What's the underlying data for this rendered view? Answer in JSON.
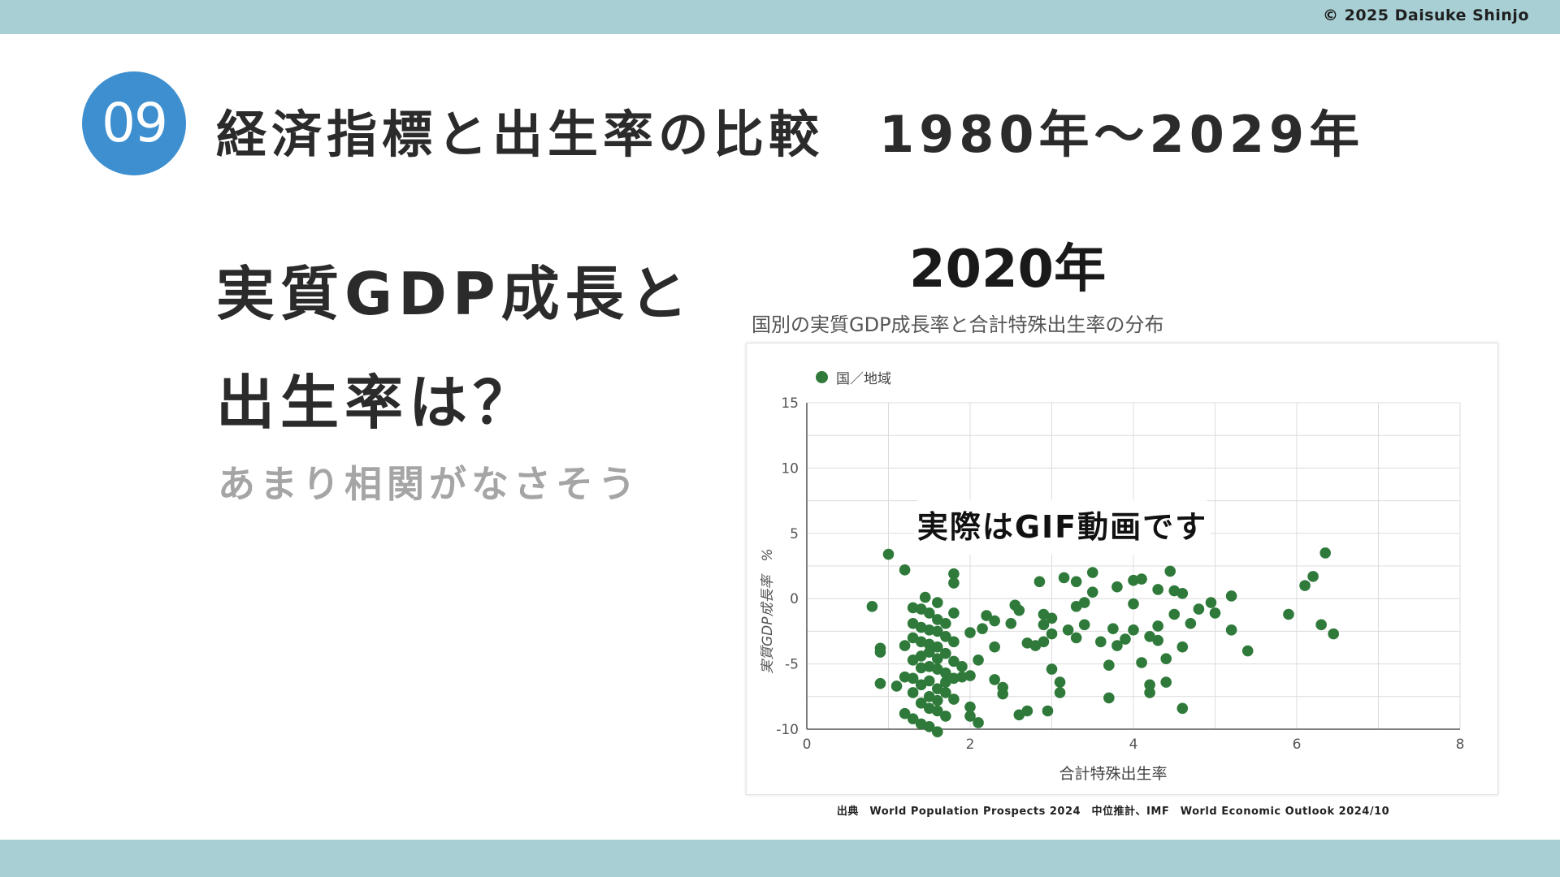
{
  "header": {
    "copyright": "© 2025 Daisuke Shinjo"
  },
  "slide": {
    "number": "09",
    "title": "経済指標と出生率の比較　1980年～2029年",
    "headline_line1": "実質GDP成長と",
    "headline_line2": "出生率は？",
    "subline": "あまり相関がなさそう"
  },
  "chart_heading": {
    "year_title": "2020年",
    "overlay": "実際はGIF動画です",
    "source": "出典　World Population Prospects 2024　中位推計、IMF　World Economic Outlook 2024/10"
  },
  "colors": {
    "accent": "#3d8fd0",
    "band": "#a7cfd4",
    "point": "#2f7a3a"
  },
  "chart_data": {
    "type": "scatter",
    "title": "国別の実質GDP成長率と合計特殊出生率の分布",
    "xlabel": "合計特殊出生率",
    "ylabel": "実質GDP成長率　%",
    "xlim": [
      0,
      8
    ],
    "ylim": [
      -10,
      15
    ],
    "xticks": [
      "0",
      "2",
      "4",
      "6",
      "8"
    ],
    "yticks": [
      "15",
      "10",
      "5",
      "0",
      "-5",
      "-10"
    ],
    "grid": true,
    "legend_position": "top-left",
    "series": [
      {
        "name": "国／地域",
        "points": [
          [
            0.8,
            -0.6
          ],
          [
            0.9,
            -3.8
          ],
          [
            0.9,
            -4.1
          ],
          [
            1.0,
            3.4
          ],
          [
            0.9,
            -6.5
          ],
          [
            1.1,
            -6.7
          ],
          [
            1.2,
            2.2
          ],
          [
            1.2,
            -3.6
          ],
          [
            1.2,
            -6.0
          ],
          [
            1.2,
            -8.8
          ],
          [
            1.3,
            -0.7
          ],
          [
            1.3,
            -1.9
          ],
          [
            1.3,
            -3.0
          ],
          [
            1.3,
            -4.7
          ],
          [
            1.3,
            -6.1
          ],
          [
            1.3,
            -7.2
          ],
          [
            1.3,
            -9.2
          ],
          [
            1.4,
            -0.8
          ],
          [
            1.4,
            -2.2
          ],
          [
            1.4,
            -3.3
          ],
          [
            1.4,
            -4.4
          ],
          [
            1.4,
            -5.3
          ],
          [
            1.4,
            -6.6
          ],
          [
            1.4,
            -8.0
          ],
          [
            1.4,
            -9.6
          ],
          [
            1.45,
            0.1
          ],
          [
            1.5,
            -1.1
          ],
          [
            1.5,
            -2.4
          ],
          [
            1.5,
            -3.5
          ],
          [
            1.5,
            -4.1
          ],
          [
            1.5,
            -5.2
          ],
          [
            1.5,
            -6.3
          ],
          [
            1.5,
            -7.5
          ],
          [
            1.5,
            -8.4
          ],
          [
            1.5,
            -9.8
          ],
          [
            1.6,
            -0.3
          ],
          [
            1.6,
            -1.6
          ],
          [
            1.6,
            -2.5
          ],
          [
            1.6,
            -3.7
          ],
          [
            1.6,
            -4.6
          ],
          [
            1.6,
            -5.4
          ],
          [
            1.6,
            -6.9
          ],
          [
            1.6,
            -7.8
          ],
          [
            1.6,
            -8.6
          ],
          [
            1.6,
            -10.2
          ],
          [
            1.7,
            -1.9
          ],
          [
            1.7,
            -2.9
          ],
          [
            1.7,
            -4.2
          ],
          [
            1.7,
            -5.7
          ],
          [
            1.7,
            -6.4
          ],
          [
            1.7,
            -7.2
          ],
          [
            1.7,
            -9.0
          ],
          [
            1.8,
            1.9
          ],
          [
            1.8,
            1.2
          ],
          [
            1.8,
            -1.1
          ],
          [
            1.8,
            -3.3
          ],
          [
            1.8,
            -4.8
          ],
          [
            1.8,
            -6.1
          ],
          [
            1.8,
            -7.7
          ],
          [
            1.9,
            -5.2
          ],
          [
            1.9,
            -6.0
          ],
          [
            2.0,
            -2.6
          ],
          [
            2.0,
            -5.9
          ],
          [
            2.0,
            -8.3
          ],
          [
            2.0,
            -9.0
          ],
          [
            2.1,
            -9.5
          ],
          [
            2.1,
            -4.7
          ],
          [
            2.15,
            -2.3
          ],
          [
            2.2,
            -1.3
          ],
          [
            2.3,
            -1.7
          ],
          [
            2.3,
            -3.7
          ],
          [
            2.3,
            -6.2
          ],
          [
            2.4,
            -6.8
          ],
          [
            2.4,
            -7.3
          ],
          [
            2.5,
            -1.9
          ],
          [
            2.55,
            -0.5
          ],
          [
            2.6,
            -0.9
          ],
          [
            2.6,
            -8.9
          ],
          [
            2.7,
            -3.4
          ],
          [
            2.7,
            -8.6
          ],
          [
            2.8,
            -3.6
          ],
          [
            2.85,
            1.3
          ],
          [
            2.9,
            -1.2
          ],
          [
            2.9,
            -2.0
          ],
          [
            2.9,
            -3.3
          ],
          [
            2.95,
            -8.6
          ],
          [
            3.0,
            -1.5
          ],
          [
            3.0,
            -2.7
          ],
          [
            3.0,
            -5.4
          ],
          [
            3.1,
            -6.4
          ],
          [
            3.1,
            -7.2
          ],
          [
            3.15,
            1.6
          ],
          [
            3.2,
            -2.4
          ],
          [
            3.3,
            1.3
          ],
          [
            3.3,
            -3.0
          ],
          [
            3.3,
            -0.6
          ],
          [
            3.4,
            -0.3
          ],
          [
            3.4,
            -2.0
          ],
          [
            3.5,
            2.0
          ],
          [
            3.5,
            0.5
          ],
          [
            3.6,
            -3.3
          ],
          [
            3.7,
            -5.1
          ],
          [
            3.7,
            -7.6
          ],
          [
            3.75,
            -2.3
          ],
          [
            3.8,
            -3.6
          ],
          [
            3.8,
            0.9
          ],
          [
            3.9,
            -3.1
          ],
          [
            4.0,
            -0.4
          ],
          [
            4.0,
            -2.4
          ],
          [
            4.0,
            1.4
          ],
          [
            4.1,
            1.5
          ],
          [
            4.1,
            -4.9
          ],
          [
            4.2,
            -2.9
          ],
          [
            4.2,
            -6.6
          ],
          [
            4.2,
            -7.2
          ],
          [
            4.3,
            0.7
          ],
          [
            4.3,
            -2.1
          ],
          [
            4.3,
            -3.2
          ],
          [
            4.4,
            -6.4
          ],
          [
            4.4,
            -4.6
          ],
          [
            4.45,
            2.1
          ],
          [
            4.5,
            0.6
          ],
          [
            4.5,
            -1.2
          ],
          [
            4.6,
            0.4
          ],
          [
            4.6,
            -3.7
          ],
          [
            4.6,
            -8.4
          ],
          [
            4.7,
            -1.9
          ],
          [
            4.8,
            -0.8
          ],
          [
            4.95,
            -0.3
          ],
          [
            5.0,
            -1.1
          ],
          [
            5.2,
            0.2
          ],
          [
            5.2,
            -2.4
          ],
          [
            5.4,
            -4.0
          ],
          [
            5.9,
            -1.2
          ],
          [
            6.1,
            1.0
          ],
          [
            6.2,
            1.7
          ],
          [
            6.3,
            -2.0
          ],
          [
            6.35,
            3.5
          ],
          [
            6.45,
            -2.7
          ]
        ]
      }
    ]
  }
}
